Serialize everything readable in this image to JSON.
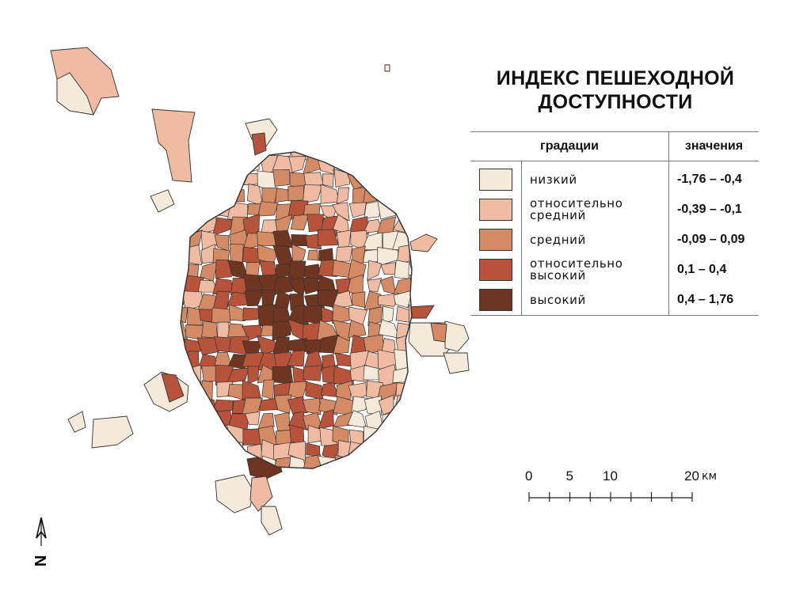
{
  "title": {
    "line1": "ИНДЕКС ПЕШЕХОДНОЙ",
    "line2": "ДОСТУПНОСТИ"
  },
  "legend": {
    "header_gradations": "градации",
    "header_values": "значения",
    "classes": [
      {
        "line1": "низкий",
        "line2": "",
        "range": "-1,76 – -0,4",
        "color": "#f3ead9"
      },
      {
        "line1": "относительно",
        "line2": "средний",
        "range": "-0,39 – -0,1",
        "color": "#efbba2"
      },
      {
        "line1": "средний",
        "line2": "",
        "range": "-0,09 – 0,09",
        "color": "#d48a65"
      },
      {
        "line1": "относительно",
        "line2": "высокий",
        "range": "0,1 – 0,4",
        "color": "#b6533a"
      },
      {
        "line1": "высокий",
        "line2": "",
        "range": "0,4 – 1,76",
        "color": "#6e3620"
      }
    ]
  },
  "scale_bar": {
    "ticks": [
      "0",
      "5",
      "10",
      "20"
    ],
    "tick_km": [
      0,
      5,
      10,
      20
    ],
    "unit": "км"
  },
  "north_arrow": {
    "label": "N"
  },
  "colors": {
    "outline": "#333333"
  }
}
